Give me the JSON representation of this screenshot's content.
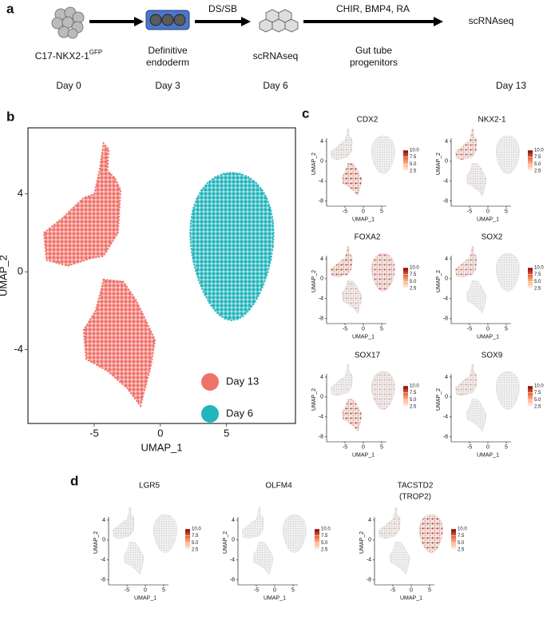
{
  "panel_labels": [
    "a",
    "b",
    "c",
    "d"
  ],
  "timeline": {
    "treatments": [
      "DS/SB",
      "CHIR, BMP4, RA"
    ],
    "stages": [
      {
        "text": "C17-NKX2-1",
        "sup": "GFP"
      },
      {
        "lines": [
          "Definitive",
          "endoderm"
        ]
      },
      {
        "text": "scRNAseq"
      },
      {
        "lines": [
          "Gut tube",
          "progenitors"
        ]
      }
    ],
    "end_label": "scRNAseq",
    "days": [
      "Day 0",
      "Day 3",
      "Day 6",
      "Day 13"
    ]
  },
  "chart_data": [
    {
      "type": "scatter",
      "xlabel": "UMAP_1",
      "ylabel": "UMAP_2",
      "xlim": [
        -10,
        10.2
      ],
      "ylim": [
        -7.8,
        7.4
      ],
      "xticks": [
        -5,
        0,
        5
      ],
      "yticks": [
        -4,
        0,
        4
      ],
      "series": [
        {
          "name": "Day 13",
          "color": "#f0736b"
        },
        {
          "name": "Day 6",
          "color": "#22b5bb"
        }
      ]
    },
    {
      "type": "scatter",
      "title": "CDX2",
      "xlabel": "UMAP_1",
      "ylabel": "UMAP_2",
      "xlim": [
        -10,
        10
      ],
      "ylim": [
        -9,
        8
      ],
      "xticks": [
        -5,
        0,
        5
      ],
      "yticks": [
        -8,
        -4,
        0,
        4
      ],
      "colorbar_ticks": [
        2.5,
        {
          "value": 5,
          "label": "5.0"
        },
        7.5,
        {
          "value": 10,
          "label": "10.0"
        }
      ]
    },
    {
      "type": "scatter",
      "title": "NKX2-1",
      "xlabel": "UMAP_1",
      "ylabel": "UMAP_2",
      "xlim": [
        -10,
        10
      ],
      "ylim": [
        -9,
        8
      ],
      "xticks": [
        -5,
        0,
        5
      ],
      "yticks": [
        -8,
        -4,
        0,
        4
      ],
      "colorbar_ticks": [
        2.5,
        {
          "value": 5,
          "label": "5.0"
        },
        7.5,
        {
          "value": 10,
          "label": "10.0"
        }
      ]
    },
    {
      "type": "scatter",
      "title": "FOXA2",
      "xlabel": "UMAP_1",
      "ylabel": "UMAP_2",
      "xlim": [
        -10,
        10
      ],
      "ylim": [
        -9,
        8
      ],
      "xticks": [
        -5,
        0,
        5
      ],
      "yticks": [
        -8,
        -4,
        0,
        4
      ],
      "colorbar_ticks": [
        2.5,
        {
          "value": 5,
          "label": "5.0"
        },
        7.5,
        {
          "value": 10,
          "label": "10.0"
        }
      ]
    },
    {
      "type": "scatter",
      "title": "SOX2",
      "xlabel": "UMAP_1",
      "ylabel": "UMAP_2",
      "xlim": [
        -10,
        10
      ],
      "ylim": [
        -9,
        8
      ],
      "xticks": [
        -5,
        0,
        5
      ],
      "yticks": [
        -8,
        -4,
        0,
        4
      ],
      "colorbar_ticks": [
        2.5,
        {
          "value": 5,
          "label": "5.0"
        },
        7.5,
        {
          "value": 10,
          "label": "10.0"
        }
      ]
    },
    {
      "type": "scatter",
      "title": "SOX17",
      "xlabel": "UMAP_1",
      "ylabel": "UMAP_2",
      "xlim": [
        -10,
        10
      ],
      "ylim": [
        -9,
        8
      ],
      "xticks": [
        -5,
        0,
        5
      ],
      "yticks": [
        -8,
        -4,
        0,
        4
      ],
      "colorbar_ticks": [
        2.5,
        {
          "value": 5,
          "label": "5.0"
        },
        7.5,
        {
          "value": 10,
          "label": "10.0"
        }
      ]
    },
    {
      "type": "scatter",
      "title": "SOX9",
      "xlabel": "UMAP_1",
      "ylabel": "UMAP_2",
      "xlim": [
        -10,
        10
      ],
      "ylim": [
        -9,
        8
      ],
      "xticks": [
        -5,
        0,
        5
      ],
      "yticks": [
        -8,
        -4,
        0,
        4
      ],
      "colorbar_ticks": [
        2.5,
        {
          "value": 5,
          "label": "5.0"
        },
        7.5,
        {
          "value": 10,
          "label": "10.0"
        }
      ]
    },
    {
      "type": "scatter",
      "title": "LGR5",
      "xlabel": "UMAP_1",
      "ylabel": "UMAP_2",
      "xlim": [
        -10,
        10
      ],
      "ylim": [
        -9,
        8
      ],
      "xticks": [
        -5,
        0,
        5
      ],
      "yticks": [
        -8,
        -4,
        0,
        4
      ],
      "colorbar_ticks": [
        2.5,
        {
          "value": 5,
          "label": "5.0"
        },
        7.5,
        {
          "value": 10,
          "label": "10.0"
        }
      ]
    },
    {
      "type": "scatter",
      "title": "OLFM4",
      "xlabel": "UMAP_1",
      "ylabel": "UMAP_2",
      "xlim": [
        -10,
        10
      ],
      "ylim": [
        -9,
        8
      ],
      "xticks": [
        -5,
        0,
        5
      ],
      "yticks": [
        -8,
        -4,
        0,
        4
      ],
      "colorbar_ticks": [
        2.5,
        {
          "value": 5,
          "label": "5.0"
        },
        7.5,
        {
          "value": 10,
          "label": "10.0"
        }
      ]
    },
    {
      "type": "scatter",
      "title": "TACSTD2",
      "subtitle": "(TROP2)",
      "xlabel": "UMAP_1",
      "ylabel": "UMAP_2",
      "xlim": [
        -10,
        10
      ],
      "ylim": [
        -9,
        8
      ],
      "xticks": [
        -5,
        0,
        5
      ],
      "yticks": [
        -8,
        -4,
        0,
        4
      ],
      "colorbar_ticks": [
        2.5,
        {
          "value": 5,
          "label": "5.0"
        },
        7.5,
        {
          "value": 10,
          "label": "10.0"
        }
      ]
    }
  ]
}
